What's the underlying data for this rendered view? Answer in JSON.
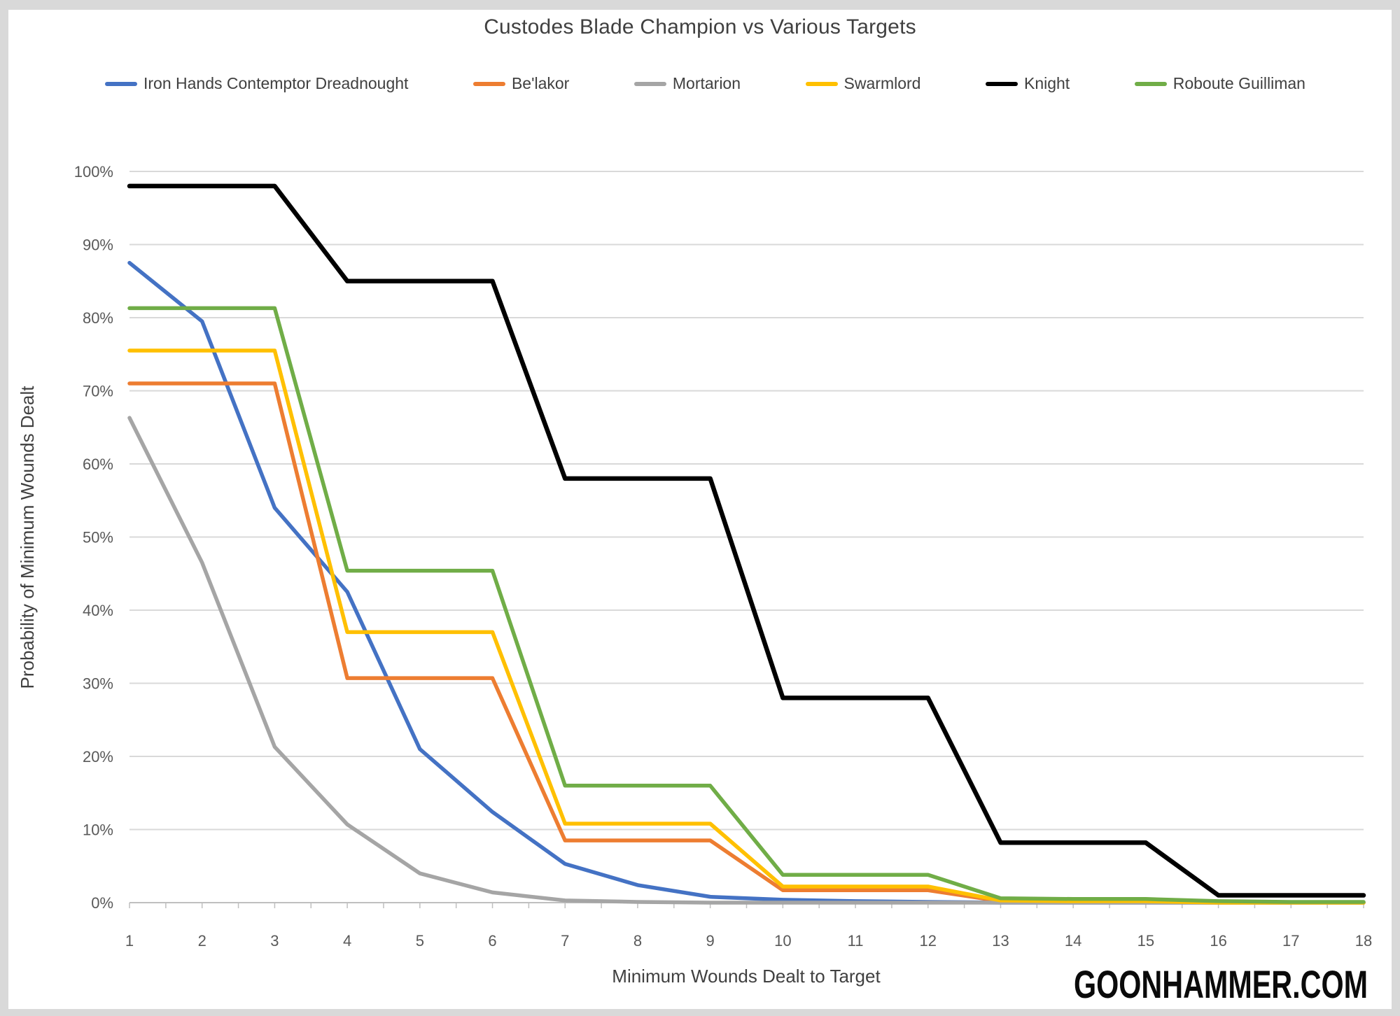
{
  "page": {
    "background_color": "#d9d9d9",
    "chart_background_color": "#ffffff",
    "gridline_color": "#d9d9d9",
    "axis_line_color": "#bfbfbf",
    "tick_label_color": "#595959",
    "text_color": "#404040"
  },
  "watermark": "GOONHAMMER.COM",
  "chart_data": {
    "type": "line",
    "title": "Custodes Blade Champion vs Various Targets",
    "xlabel": "Minimum Wounds Dealt to Target",
    "ylabel": "Probability of Minimum Wounds Dealt",
    "legend_position": "top",
    "grid": "horizontal",
    "ylim": [
      0,
      100
    ],
    "x": [
      1,
      2,
      3,
      4,
      5,
      6,
      7,
      8,
      9,
      10,
      11,
      12,
      13,
      14,
      15,
      16,
      17,
      18
    ],
    "y_ticks": [
      0,
      10,
      20,
      30,
      40,
      50,
      60,
      70,
      80,
      90,
      100
    ],
    "y_tick_labels": [
      "0%",
      "10%",
      "20%",
      "30%",
      "40%",
      "50%",
      "60%",
      "70%",
      "80%",
      "90%",
      "100%"
    ],
    "series": [
      {
        "name": "Iron Hands Contemptor Dreadnought",
        "color": "#4472C4",
        "line_width": 5.5,
        "values": [
          87.5,
          79.5,
          54,
          42.5,
          21,
          12.4,
          5.3,
          2.4,
          0.8,
          0.4,
          0.2,
          0.1,
          0,
          0,
          0,
          0,
          0,
          0
        ]
      },
      {
        "name": "Be'lakor",
        "color": "#ED7D31",
        "line_width": 5.5,
        "values": [
          71,
          71,
          71,
          30.7,
          30.7,
          30.7,
          8.5,
          8.5,
          8.5,
          1.7,
          1.7,
          1.7,
          0.2,
          0.1,
          0.1,
          0,
          0,
          0
        ]
      },
      {
        "name": "Mortarion",
        "color": "#A5A5A5",
        "line_width": 5.5,
        "values": [
          66.3,
          46.5,
          21.3,
          10.7,
          4,
          1.4,
          0.3,
          0.1,
          0,
          0,
          0,
          0,
          0,
          0,
          0,
          0,
          0,
          0
        ]
      },
      {
        "name": "Swarmlord",
        "color": "#FFC000",
        "line_width": 5.5,
        "values": [
          75.5,
          75.5,
          75.5,
          37,
          37,
          37,
          10.8,
          10.8,
          10.8,
          2.2,
          2.2,
          2.2,
          0.3,
          0.2,
          0.2,
          0,
          0,
          0
        ]
      },
      {
        "name": "Knight",
        "color": "#000000",
        "line_width": 6.5,
        "values": [
          98,
          98,
          98,
          85,
          85,
          85,
          58,
          58,
          58,
          28,
          28,
          28,
          8.2,
          8.2,
          8.2,
          1,
          1,
          1
        ]
      },
      {
        "name": "Roboute Guilliman",
        "color": "#70AD47",
        "line_width": 5.5,
        "values": [
          81.3,
          81.3,
          81.3,
          45.4,
          45.4,
          45.4,
          16,
          16,
          16,
          3.8,
          3.8,
          3.8,
          0.6,
          0.5,
          0.5,
          0.2,
          0.1,
          0.1
        ]
      }
    ]
  }
}
